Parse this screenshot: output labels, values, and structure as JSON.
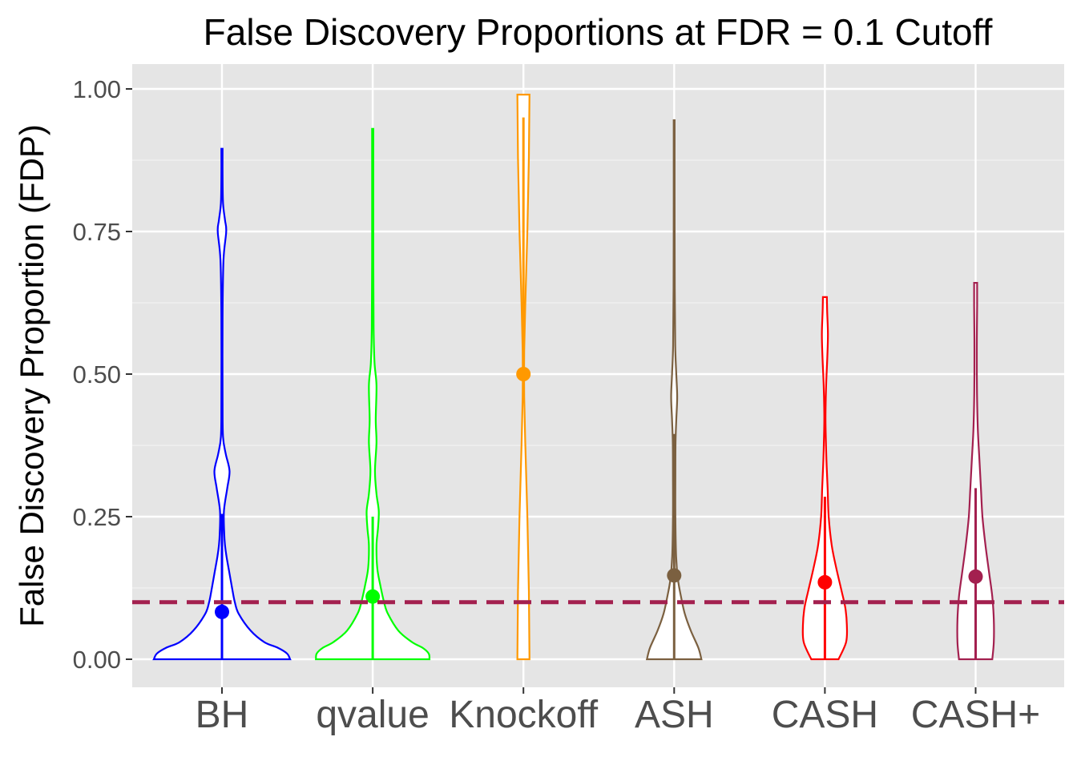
{
  "chart_data": {
    "type": "violin",
    "title": "False Discovery Proportions at FDR = 0.1 Cutoff",
    "ylabel": "False Discovery Proportion (FDP)",
    "xlabel": "",
    "ylim": [
      -0.05,
      1.04
    ],
    "yticks": [
      "0.00",
      "0.25",
      "0.50",
      "0.75",
      "1.00"
    ],
    "ytick_values": [
      0,
      0.25,
      0.5,
      0.75,
      1.0
    ],
    "grid": true,
    "reference_line": {
      "y": 0.1,
      "style": "dashed",
      "color": "#A3204F"
    },
    "categories": [
      "BH",
      "qvalue",
      "Knockoff",
      "ASH",
      "CASH",
      "CASH+"
    ],
    "series": [
      {
        "category": "BH",
        "color": "#0000FF",
        "mean": 0.083,
        "whisker": [
          0.0,
          0.255
        ],
        "profile": [
          [
            0,
            0.45
          ],
          [
            0.01,
            0.43
          ],
          [
            0.02,
            0.37
          ],
          [
            0.03,
            0.28
          ],
          [
            0.05,
            0.19
          ],
          [
            0.08,
            0.11
          ],
          [
            0.1,
            0.085
          ],
          [
            0.12,
            0.07
          ],
          [
            0.15,
            0.05
          ],
          [
            0.18,
            0.03
          ],
          [
            0.2,
            0.02
          ],
          [
            0.22,
            0.015
          ],
          [
            0.26,
            0.013
          ],
          [
            0.3,
            0.035
          ],
          [
            0.33,
            0.05
          ],
          [
            0.36,
            0.025
          ],
          [
            0.39,
            0.007
          ],
          [
            0.45,
            0.004
          ],
          [
            0.6,
            0.004
          ],
          [
            0.7,
            0.01
          ],
          [
            0.75,
            0.028
          ],
          [
            0.77,
            0.02
          ],
          [
            0.8,
            0.007
          ],
          [
            0.85,
            0.004
          ],
          [
            0.895,
            0.004
          ]
        ]
      },
      {
        "category": "qvalue",
        "color": "#00FF00",
        "mean": 0.11,
        "whisker": [
          0.0,
          0.25
        ],
        "profile": [
          [
            0,
            0.375
          ],
          [
            0.01,
            0.37
          ],
          [
            0.02,
            0.33
          ],
          [
            0.03,
            0.26
          ],
          [
            0.05,
            0.17
          ],
          [
            0.08,
            0.1
          ],
          [
            0.1,
            0.075
          ],
          [
            0.13,
            0.05
          ],
          [
            0.16,
            0.03
          ],
          [
            0.2,
            0.025
          ],
          [
            0.23,
            0.035
          ],
          [
            0.26,
            0.04
          ],
          [
            0.29,
            0.025
          ],
          [
            0.33,
            0.015
          ],
          [
            0.38,
            0.025
          ],
          [
            0.42,
            0.02
          ],
          [
            0.48,
            0.025
          ],
          [
            0.52,
            0.012
          ],
          [
            0.58,
            0.006
          ],
          [
            0.7,
            0.004
          ],
          [
            0.93,
            0.004
          ]
        ]
      },
      {
        "category": "Knockoff",
        "color": "#FF9900",
        "mean": 0.5,
        "whisker": [
          0.5,
          0.95
        ],
        "profile": [
          [
            0,
            0.04
          ],
          [
            0.12,
            0.036
          ],
          [
            0.25,
            0.026
          ],
          [
            0.38,
            0.012
          ],
          [
            0.46,
            0.005
          ],
          [
            0.5,
            0.004
          ],
          [
            0.54,
            0.005
          ],
          [
            0.62,
            0.012
          ],
          [
            0.75,
            0.026
          ],
          [
            0.88,
            0.036
          ],
          [
            0.99,
            0.04
          ]
        ]
      },
      {
        "category": "ASH",
        "color": "#7B6040",
        "mean": 0.147,
        "whisker": [
          0.0,
          0.395
        ],
        "profile": [
          [
            0,
            0.18
          ],
          [
            0.02,
            0.16
          ],
          [
            0.05,
            0.11
          ],
          [
            0.08,
            0.07
          ],
          [
            0.11,
            0.045
          ],
          [
            0.14,
            0.025
          ],
          [
            0.18,
            0.013
          ],
          [
            0.25,
            0.008
          ],
          [
            0.32,
            0.008
          ],
          [
            0.38,
            0.009
          ],
          [
            0.42,
            0.014
          ],
          [
            0.46,
            0.02
          ],
          [
            0.5,
            0.014
          ],
          [
            0.55,
            0.007
          ],
          [
            0.65,
            0.004
          ],
          [
            0.8,
            0.003
          ],
          [
            0.945,
            0.003
          ]
        ]
      },
      {
        "category": "CASH",
        "color": "#FF0000",
        "mean": 0.135,
        "whisker": [
          0.0,
          0.285
        ],
        "profile": [
          [
            0,
            0.09
          ],
          [
            0.03,
            0.14
          ],
          [
            0.06,
            0.145
          ],
          [
            0.09,
            0.135
          ],
          [
            0.12,
            0.11
          ],
          [
            0.16,
            0.075
          ],
          [
            0.2,
            0.045
          ],
          [
            0.25,
            0.025
          ],
          [
            0.3,
            0.018
          ],
          [
            0.35,
            0.01
          ],
          [
            0.4,
            0.005
          ],
          [
            0.43,
            0.004
          ],
          [
            0.48,
            0.008
          ],
          [
            0.53,
            0.016
          ],
          [
            0.57,
            0.02
          ],
          [
            0.61,
            0.015
          ],
          [
            0.635,
            0.013
          ]
        ]
      },
      {
        "category": "CASH+",
        "color": "#A3204F",
        "mean": 0.145,
        "whisker": [
          0.0,
          0.3
        ],
        "profile": [
          [
            0,
            0.11
          ],
          [
            0.03,
            0.12
          ],
          [
            0.07,
            0.12
          ],
          [
            0.11,
            0.11
          ],
          [
            0.15,
            0.09
          ],
          [
            0.2,
            0.065
          ],
          [
            0.25,
            0.045
          ],
          [
            0.3,
            0.035
          ],
          [
            0.35,
            0.025
          ],
          [
            0.4,
            0.015
          ],
          [
            0.45,
            0.01
          ],
          [
            0.5,
            0.008
          ],
          [
            0.56,
            0.008
          ],
          [
            0.62,
            0.01
          ],
          [
            0.66,
            0.01
          ]
        ]
      }
    ]
  }
}
